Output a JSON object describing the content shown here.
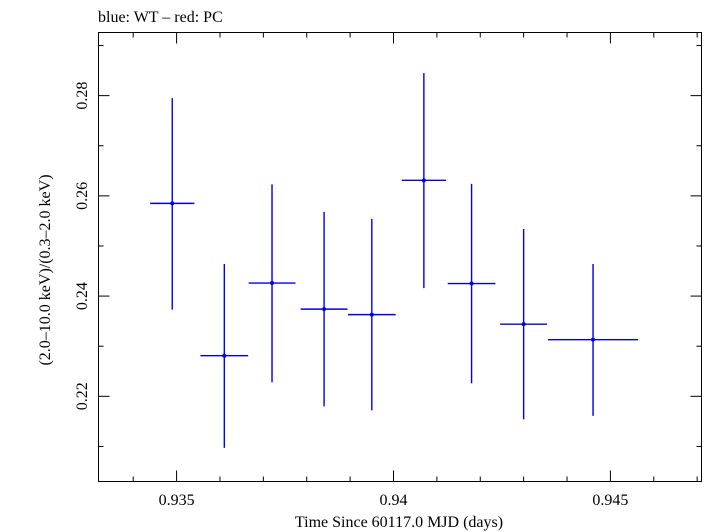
{
  "chart_data": {
    "type": "scatter",
    "title": "blue: WT – red: PC",
    "xlabel": "Time Since 60117.0 MJD (days)",
    "ylabel": "(2.0–10.0 keV)/(0.3–2.0 keV)",
    "xlim": [
      0.9332,
      0.9471
    ],
    "ylim": [
      0.203,
      0.2926
    ],
    "x_ticks": [
      0.935,
      0.94,
      0.945
    ],
    "x_tick_labels": [
      "0.935",
      "0.94",
      "0.945"
    ],
    "y_ticks": [
      0.22,
      0.24,
      0.26,
      0.28
    ],
    "y_tick_labels": [
      "0.22",
      "0.24",
      "0.26",
      "0.28"
    ],
    "grid": false,
    "series": [
      {
        "color": "#0000ee",
        "points": [
          {
            "x": 0.9349,
            "y": 0.2585,
            "xerr": 0.00051,
            "yerr_low": 0.0212,
            "yerr_high": 0.021
          },
          {
            "x": 0.9361,
            "y": 0.2281,
            "xerr": 0.00055,
            "yerr_low": 0.0184,
            "yerr_high": 0.0183
          },
          {
            "x": 0.9372,
            "y": 0.2426,
            "xerr": 0.00054,
            "yerr_low": 0.0198,
            "yerr_high": 0.0197
          },
          {
            "x": 0.9384,
            "y": 0.2374,
            "xerr": 0.00054,
            "yerr_low": 0.0194,
            "yerr_high": 0.0194
          },
          {
            "x": 0.9395,
            "y": 0.2363,
            "xerr": 0.00055,
            "yerr_low": 0.0191,
            "yerr_high": 0.0191
          },
          {
            "x": 0.9407,
            "y": 0.2631,
            "xerr": 0.00051,
            "yerr_low": 0.0215,
            "yerr_high": 0.0214
          },
          {
            "x": 0.9418,
            "y": 0.2425,
            "xerr": 0.00055,
            "yerr_low": 0.0199,
            "yerr_high": 0.0199
          },
          {
            "x": 0.943,
            "y": 0.2344,
            "xerr": 0.00054,
            "yerr_low": 0.019,
            "yerr_high": 0.019
          },
          {
            "x": 0.9446,
            "y": 0.2313,
            "xerr": 0.00104,
            "yerr_low": 0.0152,
            "yerr_high": 0.0151
          }
        ]
      }
    ]
  }
}
